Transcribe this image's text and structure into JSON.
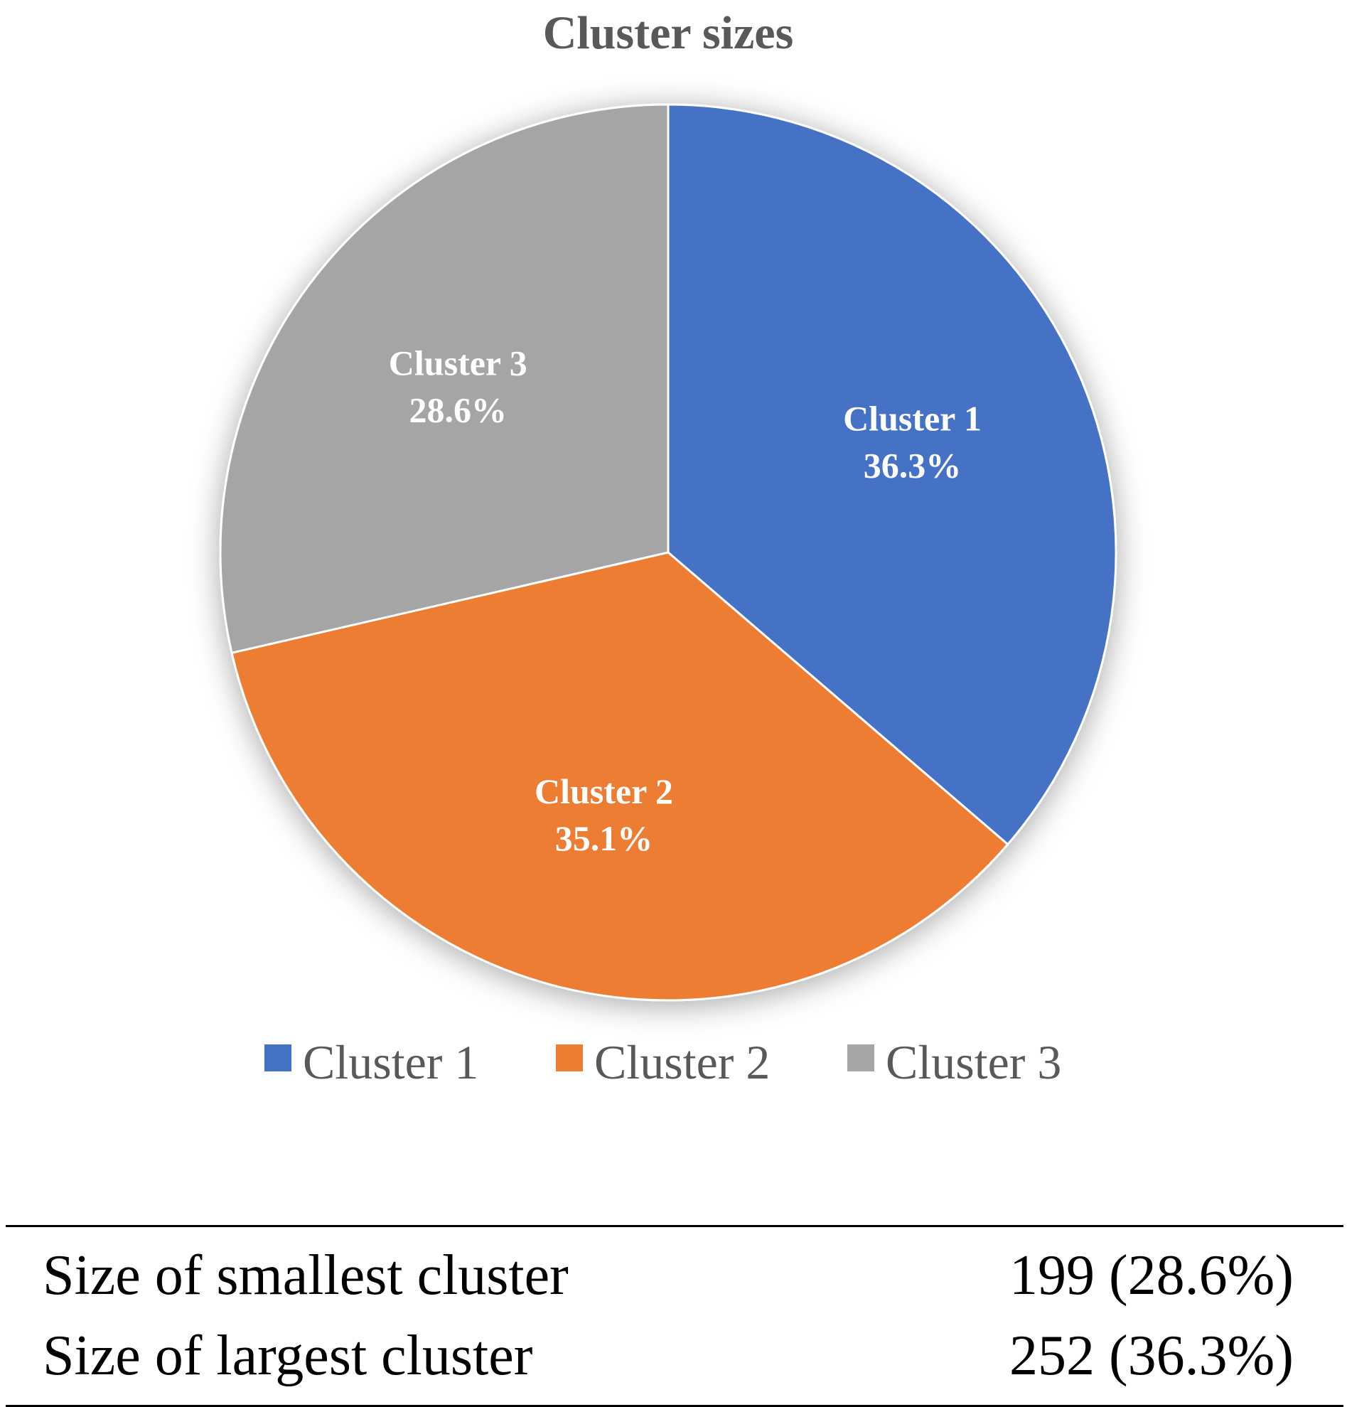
{
  "chart_data": {
    "type": "pie",
    "title": "Cluster sizes",
    "categories": [
      "Cluster 1",
      "Cluster 2",
      "Cluster 3"
    ],
    "values": [
      36.3,
      35.1,
      28.6
    ],
    "value_labels": [
      "36.3%",
      "35.1%",
      "28.6%"
    ],
    "colors": [
      "#4472C4",
      "#ED7D31",
      "#A5A5A5"
    ],
    "start_angle_deg": 0,
    "direction": "clockwise",
    "legend_position": "bottom"
  },
  "summary": {
    "rows": [
      {
        "label": "Size of smallest cluster",
        "value": "199 (28.6%)"
      },
      {
        "label": "Size of largest cluster",
        "value": "252 (36.3%)"
      }
    ]
  }
}
